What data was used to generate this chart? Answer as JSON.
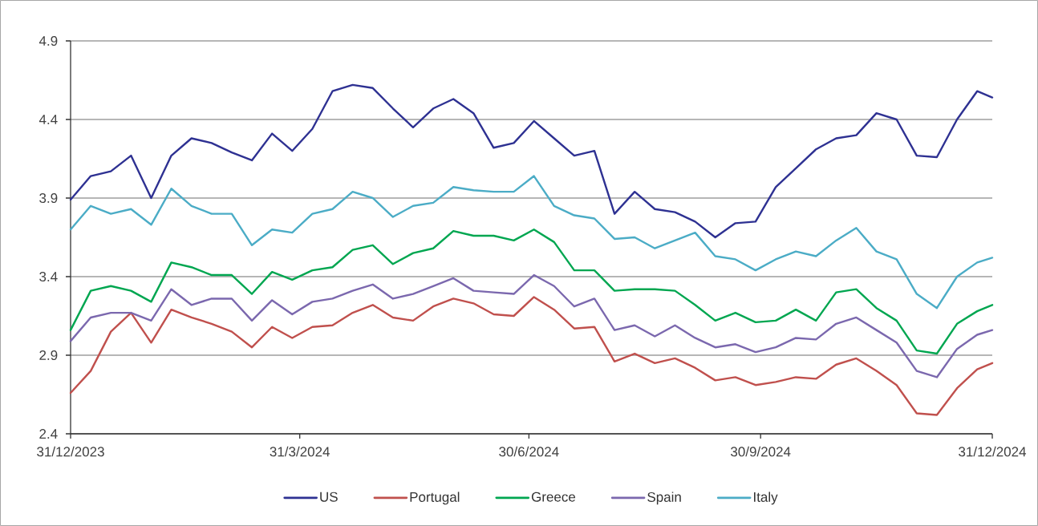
{
  "chart_data": {
    "type": "line",
    "x": [
      "2023-12-31",
      "2024-01-08",
      "2024-01-16",
      "2024-01-24",
      "2024-02-01",
      "2024-02-09",
      "2024-02-17",
      "2024-02-25",
      "2024-03-04",
      "2024-03-12",
      "2024-03-20",
      "2024-03-28",
      "2024-04-05",
      "2024-04-13",
      "2024-04-21",
      "2024-04-29",
      "2024-05-07",
      "2024-05-15",
      "2024-05-23",
      "2024-05-31",
      "2024-06-08",
      "2024-06-16",
      "2024-06-24",
      "2024-07-02",
      "2024-07-10",
      "2024-07-18",
      "2024-07-26",
      "2024-08-03",
      "2024-08-11",
      "2024-08-19",
      "2024-08-27",
      "2024-09-04",
      "2024-09-12",
      "2024-09-20",
      "2024-09-28",
      "2024-10-06",
      "2024-10-14",
      "2024-10-22",
      "2024-10-30",
      "2024-11-07",
      "2024-11-15",
      "2024-11-23",
      "2024-12-01",
      "2024-12-09",
      "2024-12-17",
      "2024-12-25",
      "2024-12-31"
    ],
    "series": [
      {
        "name": "US",
        "color": "#2e3192",
        "values": [
          3.89,
          4.04,
          4.07,
          4.17,
          3.9,
          4.17,
          4.28,
          4.25,
          4.19,
          4.14,
          4.31,
          4.2,
          4.34,
          4.58,
          4.62,
          4.6,
          4.47,
          4.35,
          4.47,
          4.53,
          4.44,
          4.22,
          4.25,
          4.39,
          4.28,
          4.17,
          4.2,
          3.8,
          3.94,
          3.83,
          3.81,
          3.75,
          3.65,
          3.74,
          3.75,
          3.97,
          4.09,
          4.21,
          4.28,
          4.3,
          4.44,
          4.4,
          4.17,
          4.16,
          4.4,
          4.58,
          4.54
        ]
      },
      {
        "name": "Portugal",
        "color": "#c0504d",
        "values": [
          2.66,
          2.8,
          3.05,
          3.17,
          2.98,
          3.19,
          3.14,
          3.1,
          3.05,
          2.95,
          3.08,
          3.01,
          3.08,
          3.09,
          3.17,
          3.22,
          3.14,
          3.12,
          3.21,
          3.26,
          3.23,
          3.16,
          3.15,
          3.27,
          3.19,
          3.07,
          3.08,
          2.86,
          2.91,
          2.85,
          2.88,
          2.82,
          2.74,
          2.76,
          2.71,
          2.73,
          2.76,
          2.75,
          2.84,
          2.88,
          2.8,
          2.71,
          2.53,
          2.52,
          2.69,
          2.81,
          2.85
        ]
      },
      {
        "name": "Greece",
        "color": "#00a650",
        "values": [
          3.06,
          3.31,
          3.34,
          3.31,
          3.24,
          3.49,
          3.46,
          3.41,
          3.41,
          3.29,
          3.43,
          3.38,
          3.44,
          3.46,
          3.57,
          3.6,
          3.48,
          3.55,
          3.58,
          3.69,
          3.66,
          3.66,
          3.63,
          3.7,
          3.62,
          3.44,
          3.44,
          3.31,
          3.32,
          3.32,
          3.31,
          3.22,
          3.12,
          3.17,
          3.11,
          3.12,
          3.19,
          3.12,
          3.3,
          3.32,
          3.2,
          3.12,
          2.93,
          2.91,
          3.1,
          3.18,
          3.22
        ]
      },
      {
        "name": "Spain",
        "color": "#7b68ae",
        "values": [
          2.99,
          3.14,
          3.17,
          3.17,
          3.12,
          3.32,
          3.22,
          3.26,
          3.26,
          3.12,
          3.25,
          3.16,
          3.24,
          3.26,
          3.31,
          3.35,
          3.26,
          3.29,
          3.34,
          3.39,
          3.31,
          3.3,
          3.29,
          3.41,
          3.34,
          3.21,
          3.26,
          3.06,
          3.09,
          3.02,
          3.09,
          3.01,
          2.95,
          2.97,
          2.92,
          2.95,
          3.01,
          3.0,
          3.1,
          3.14,
          3.06,
          2.98,
          2.8,
          2.76,
          2.94,
          3.03,
          3.06
        ]
      },
      {
        "name": "Italy",
        "color": "#4bacc6",
        "values": [
          3.7,
          3.85,
          3.8,
          3.83,
          3.73,
          3.96,
          3.85,
          3.8,
          3.8,
          3.6,
          3.7,
          3.68,
          3.8,
          3.83,
          3.94,
          3.9,
          3.78,
          3.85,
          3.87,
          3.97,
          3.95,
          3.94,
          3.94,
          4.04,
          3.85,
          3.79,
          3.77,
          3.64,
          3.65,
          3.58,
          3.63,
          3.68,
          3.53,
          3.51,
          3.44,
          3.51,
          3.56,
          3.53,
          3.63,
          3.71,
          3.56,
          3.51,
          3.29,
          3.2,
          3.4,
          3.49,
          3.52
        ]
      }
    ],
    "xlim": [
      "2023-12-31",
      "2024-12-31"
    ],
    "xticks": [
      {
        "value": "2023-12-31",
        "label": "31/12/2023"
      },
      {
        "value": "2024-03-31",
        "label": "31/3/2024"
      },
      {
        "value": "2024-06-30",
        "label": "30/6/2024"
      },
      {
        "value": "2024-09-30",
        "label": "30/9/2024"
      },
      {
        "value": "2024-12-31",
        "label": "31/12/2024"
      }
    ],
    "ylim": [
      2.4,
      4.9
    ],
    "yticks": [
      2.4,
      2.9,
      3.4,
      3.9,
      4.4,
      4.9
    ],
    "grid": "y",
    "legend": "bottom",
    "line_style": "solid"
  }
}
